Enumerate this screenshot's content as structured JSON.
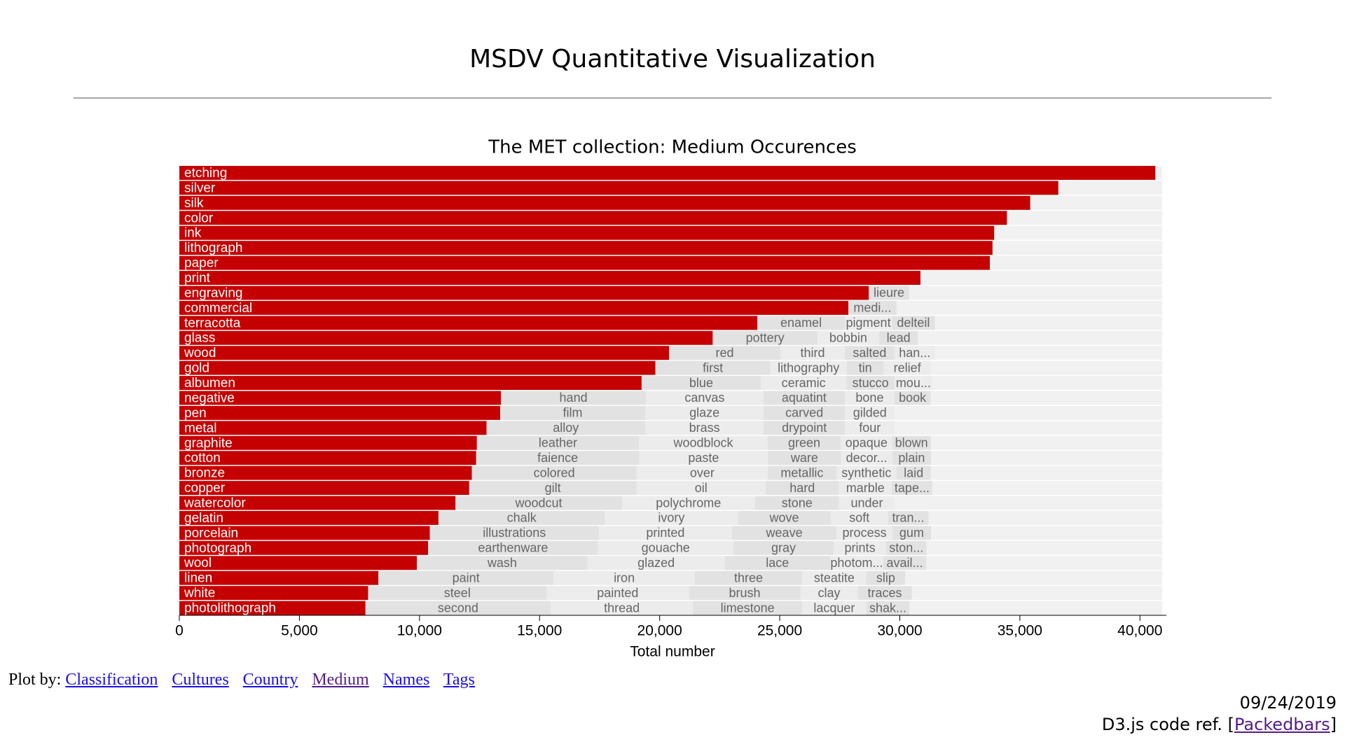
{
  "header": {
    "title": "MSDV Quantitative Visualization"
  },
  "chart_data": {
    "type": "packedbar",
    "title": "The MET collection: Medium Occurences",
    "x_label": "Total number",
    "color": "#c50000",
    "other_colors": [
      "#e2e2e2",
      "#ececec"
    ],
    "xlim": [
      0,
      41100
    ],
    "xticks": [
      0,
      {
        "value": 5000,
        "label": "5,000"
      },
      {
        "value": 10000,
        "label": "10,000"
      },
      {
        "value": 15000,
        "label": "15,000"
      },
      {
        "value": 20000,
        "label": "20,000"
      },
      {
        "value": 25000,
        "label": "25,000"
      },
      {
        "value": 30000,
        "label": "30,000"
      },
      {
        "value": 35000,
        "label": "35,000"
      },
      {
        "value": 40000,
        "label": "40,000"
      }
    ],
    "categories": [
      "etching",
      "silver",
      "silk",
      "color",
      "ink",
      "lithograph",
      "paper",
      "print",
      "engraving",
      "commercial",
      "terracotta",
      "glass",
      "wood",
      "gold",
      "albumen",
      "negative",
      "pen",
      "metal",
      "graphite",
      "cotton",
      "bronze",
      "copper",
      "watercolor",
      "gelatin",
      "porcelain",
      "photograph",
      "wool",
      "linen",
      "white",
      "photolithograph"
    ],
    "values": [
      40640,
      36600,
      35430,
      34460,
      33930,
      33860,
      33750,
      30860,
      28710,
      27860,
      24070,
      22210,
      20390,
      19820,
      19250,
      13390,
      13360,
      12790,
      12390,
      12360,
      12180,
      12070,
      11500,
      10790,
      10430,
      10360,
      9890,
      8290,
      7860,
      7750
    ],
    "others": [
      {
        "labels": [],
        "values": []
      },
      {
        "labels": [],
        "values": []
      },
      {
        "labels": [],
        "values": []
      },
      {
        "labels": [],
        "values": []
      },
      {
        "labels": [],
        "values": []
      },
      {
        "labels": [],
        "values": []
      },
      {
        "labels": [],
        "values": []
      },
      {
        "labels": [],
        "values": []
      },
      {
        "labels": [
          "lieure"
        ],
        "values": [
          1680
        ]
      },
      {
        "labels": [
          "medi..."
        ],
        "values": [
          2000
        ]
      },
      {
        "labels": [
          "enamel",
          "pigment",
          "delteil"
        ],
        "values": [
          3640,
          1960,
          1790
        ]
      },
      {
        "labels": [
          "pottery",
          "bobbin",
          "lead"
        ],
        "values": [
          4360,
          2570,
          1610
        ]
      },
      {
        "labels": [
          "red",
          "third",
          "salted",
          "han..."
        ],
        "values": [
          4640,
          2680,
          2070,
          1680
        ]
      },
      {
        "labels": [
          "first",
          "lithography",
          "tin",
          "relief"
        ],
        "values": [
          4790,
          3180,
          1540,
          1960
        ]
      },
      {
        "labels": [
          "blue",
          "ceramic",
          "stucco",
          "mou..."
        ],
        "values": [
          4960,
          3570,
          2000,
          1570
        ]
      },
      {
        "labels": [
          "hand",
          "canvas",
          "aquatint",
          "bone",
          "book"
        ],
        "values": [
          6040,
          4890,
          3390,
          2070,
          1500
        ]
      },
      {
        "labels": [
          "film",
          "glaze",
          "carved",
          "gilded"
        ],
        "values": [
          6040,
          4930,
          3390,
          2070
        ]
      },
      {
        "labels": [
          "alloy",
          "brass",
          "drypoint",
          "four"
        ],
        "values": [
          6610,
          4930,
          3390,
          2070
        ]
      },
      {
        "labels": [
          "leather",
          "woodblock",
          "green",
          "opaque",
          "blown"
        ],
        "values": [
          6750,
          5360,
          3040,
          2140,
          1610
        ]
      },
      {
        "labels": [
          "faience",
          "paste",
          "ware",
          "decor...",
          "plain"
        ],
        "values": [
          6790,
          5360,
          3040,
          2140,
          1610
        ]
      },
      {
        "labels": [
          "colored",
          "over",
          "metallic",
          "synthetic",
          "laid"
        ],
        "values": [
          6860,
          5460,
          2860,
          2500,
          1430
        ]
      },
      {
        "labels": [
          "gilt",
          "oil",
          "hard",
          "marble",
          "tape..."
        ],
        "values": [
          6960,
          5390,
          3040,
          2210,
          1680
        ]
      },
      {
        "labels": [
          "woodcut",
          "polychrome",
          "stone",
          "under"
        ],
        "values": [
          6930,
          5540,
          3500,
          2320
        ]
      },
      {
        "labels": [
          "chalk",
          "ivory",
          "wove",
          "soft",
          "tran..."
        ],
        "values": [
          6930,
          5540,
          3860,
          2390,
          1680
        ]
      },
      {
        "labels": [
          "illustrations",
          "printed",
          "weave",
          "process",
          "gum"
        ],
        "values": [
          7040,
          5540,
          4360,
          2320,
          1610
        ]
      },
      {
        "labels": [
          "earthenware",
          "gouache",
          "gray",
          "prints",
          "ston..."
        ],
        "values": [
          7070,
          5640,
          4180,
          2180,
          1680
        ]
      },
      {
        "labels": [
          "wash",
          "glazed",
          "lace",
          "photom...",
          "avail..."
        ],
        "values": [
          7110,
          5710,
          4390,
          2210,
          1790
        ]
      },
      {
        "labels": [
          "paint",
          "iron",
          "three",
          "steatite",
          "slip"
        ],
        "values": [
          7290,
          5890,
          4460,
          2680,
          1610
        ]
      },
      {
        "labels": [
          "steel",
          "painted",
          "brush",
          "clay",
          "traces"
        ],
        "values": [
          7430,
          5930,
          4640,
          2390,
          2250
        ]
      },
      {
        "labels": [
          "second",
          "thread",
          "limestone",
          "lacquer",
          "shak..."
        ],
        "values": [
          7710,
          5930,
          4540,
          2680,
          1790
        ]
      }
    ]
  },
  "footer": {
    "plot_by": "Plot by:",
    "links": [
      "Classification",
      "Cultures",
      "Country",
      "Medium",
      "Names",
      "Tags"
    ],
    "date": "09/24/2019",
    "code_ref": "D3.js code ref. [",
    "code_link": "Packedbars",
    "code_end": "]"
  }
}
